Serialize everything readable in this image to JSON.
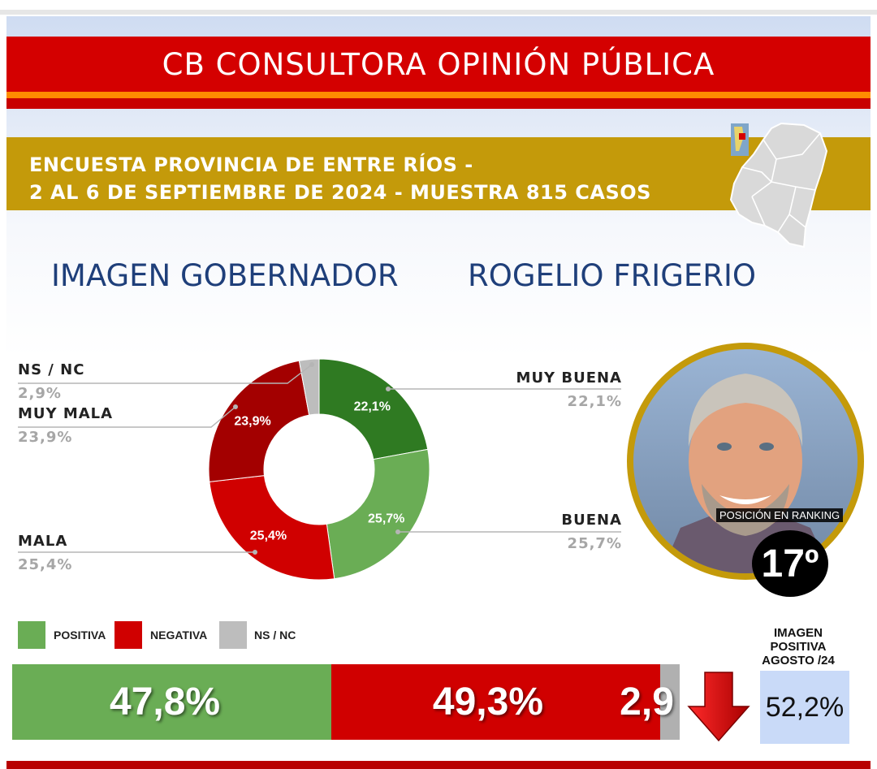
{
  "header": {
    "title": "CB CONSULTORA OPINIÓN PÚBLICA",
    "subtitle_line1": "ENCUESTA PROVINCIA DE ENTRE RÍOS -",
    "subtitle_line2": "2 AL 6 DE SEPTIEMBRE DE 2024 - MUESTRA 815 CASOS"
  },
  "heading": {
    "left": "IMAGEN GOBERNADOR",
    "right": "ROGELIO FRIGERIO"
  },
  "colors": {
    "red": "#d40000",
    "orange": "#ff8c00",
    "gold": "#c49a0a",
    "navy": "#1f3f7a",
    "muy_buena": "#2f7a22",
    "buena": "#6aad55",
    "mala": "#d00000",
    "muy_mala": "#a30000",
    "nsnc": "#bdbdbd"
  },
  "chart_data": [
    {
      "type": "pie",
      "style": "donut",
      "categories": [
        "MUY BUENA",
        "BUENA",
        "MALA",
        "MUY MALA",
        "NS / NC"
      ],
      "values": [
        22.1,
        25.7,
        25.4,
        23.9,
        2.9
      ],
      "labels": [
        "22,1%",
        "25,7%",
        "25,4%",
        "23,9%",
        "2,9%"
      ],
      "colors": [
        "#2f7a22",
        "#6aad55",
        "#d00000",
        "#a30000",
        "#bdbdbd"
      ]
    },
    {
      "type": "bar",
      "orientation": "horizontal-stacked",
      "legend": [
        "POSITIVA",
        "NEGATIVA",
        "NS / NC"
      ],
      "values": [
        47.8,
        49.3,
        2.9
      ],
      "labels": [
        "47,8%",
        "49,3%",
        "2,9"
      ],
      "colors": [
        "#6aad55",
        "#d00000",
        "#b0b0b0"
      ]
    }
  ],
  "side": {
    "ranking_label": "POSICIÓN EN RANKING",
    "ranking_value": "17º",
    "prev_label": "IMAGEN POSITIVA AGOSTO /24",
    "prev_value": "52,2%",
    "trend": "down-arrow-icon"
  }
}
